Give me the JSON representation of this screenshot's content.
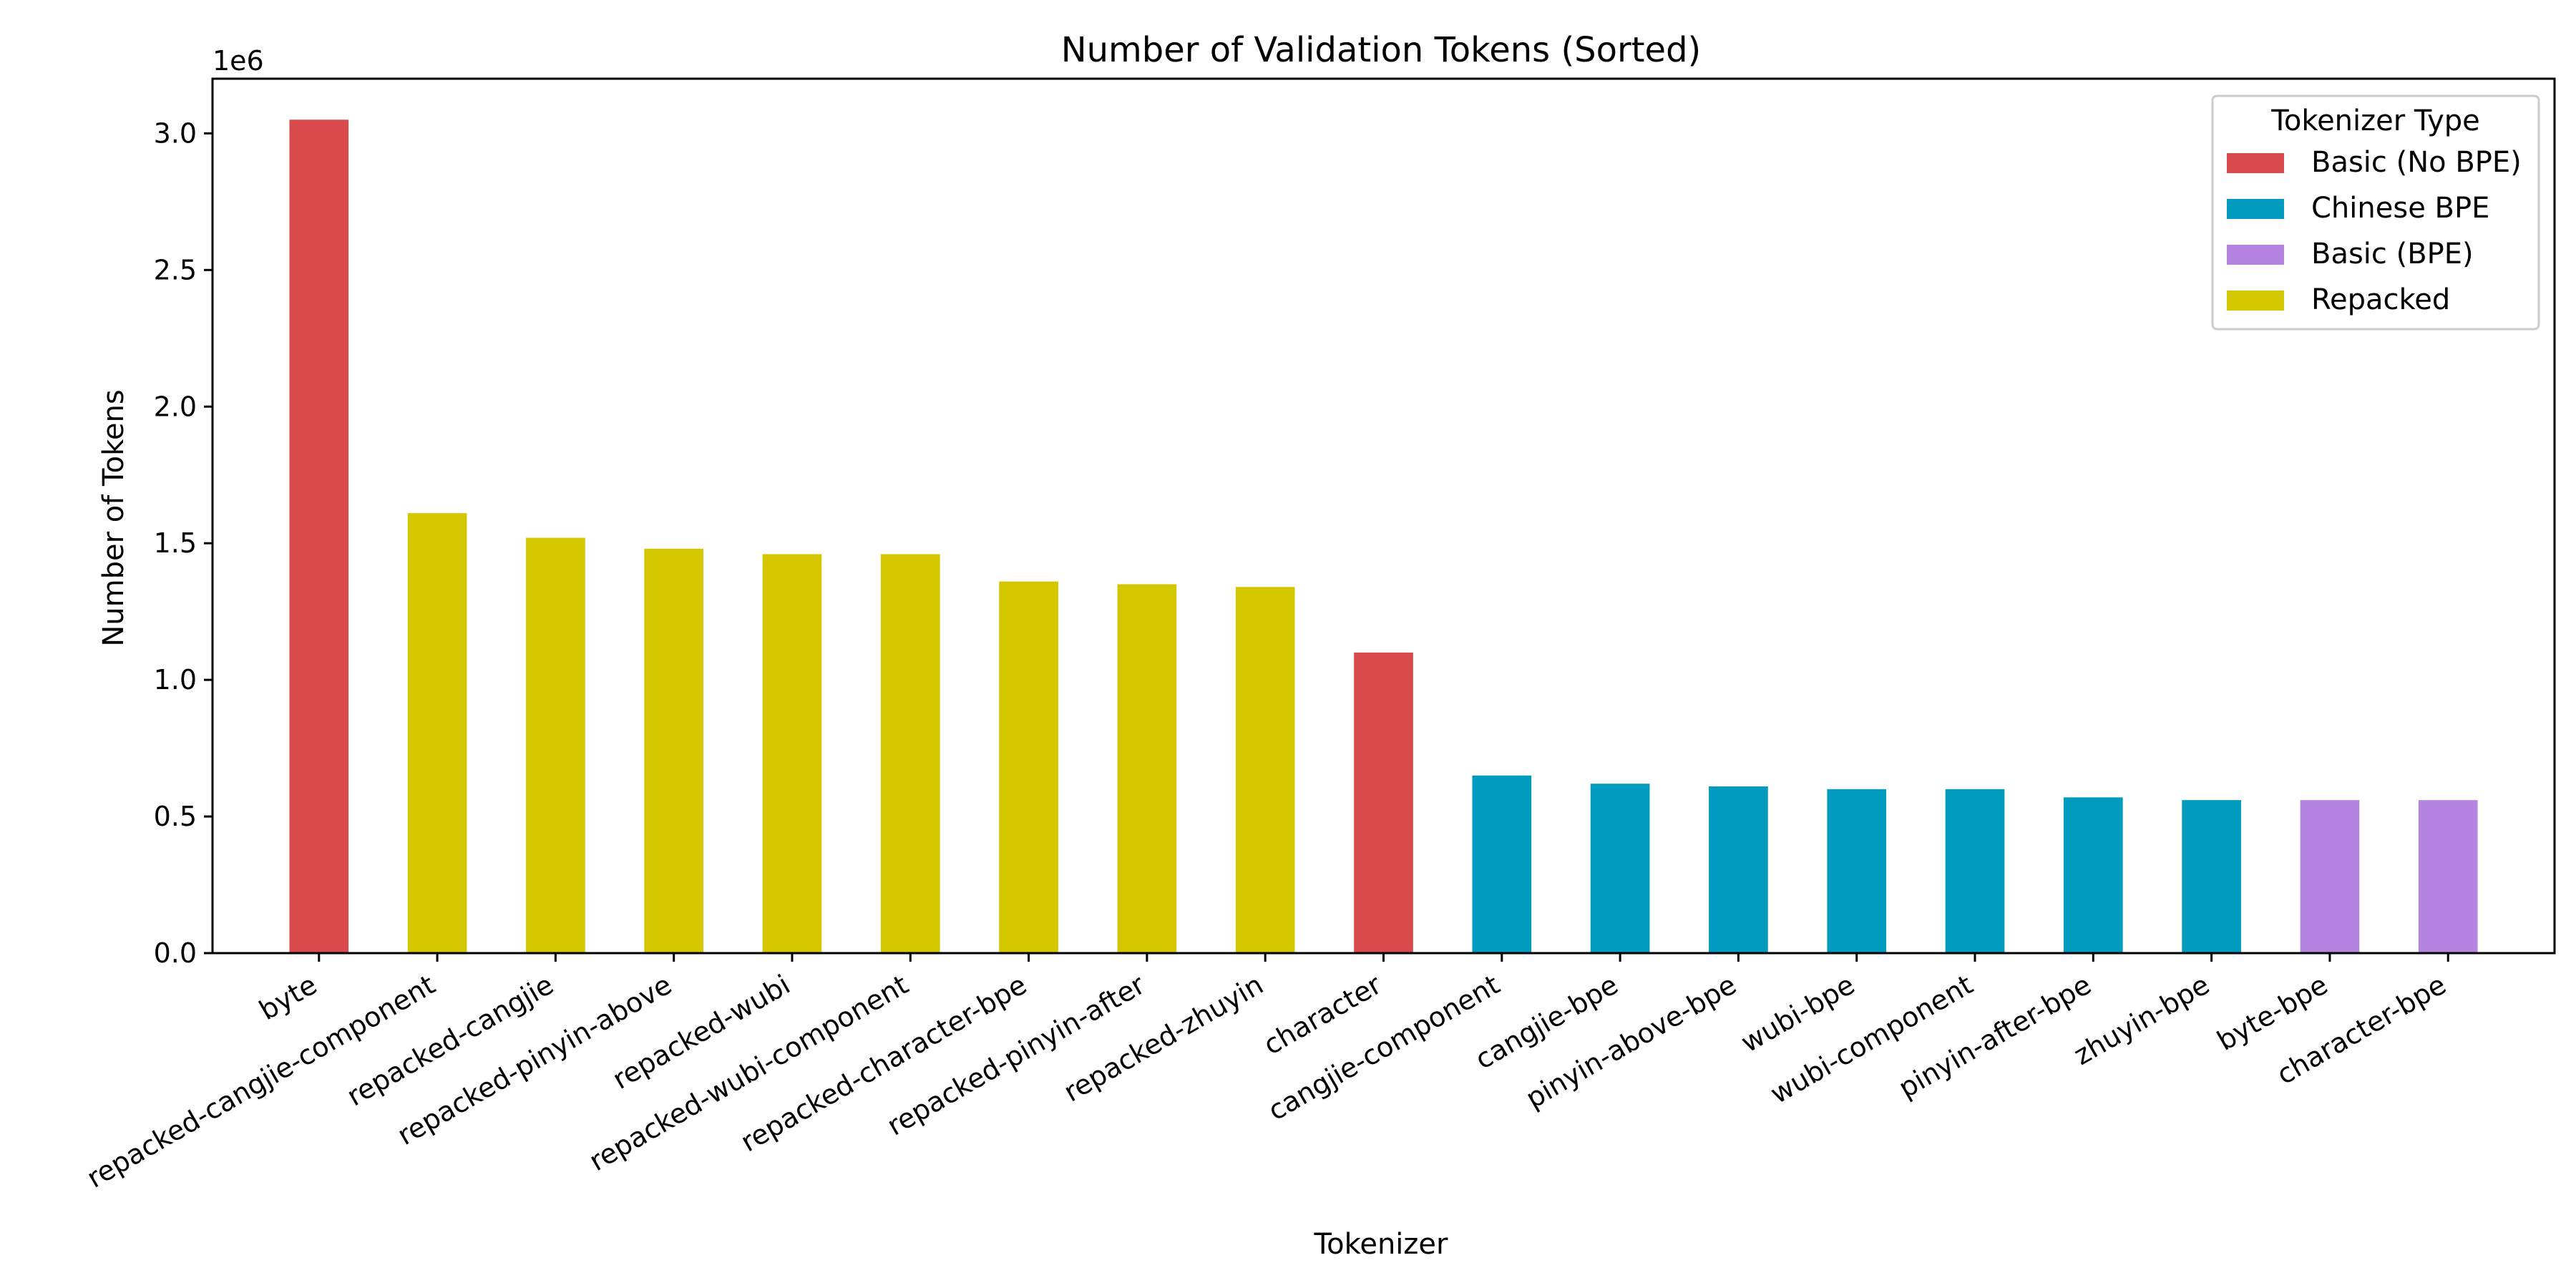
{
  "chart_data": {
    "type": "bar",
    "title": "Number of Validation Tokens (Sorted)",
    "xlabel": "Tokenizer",
    "ylabel": "Number of Tokens",
    "y_multiplier_label": "1e6",
    "ylim": [
      0,
      3.2
    ],
    "yticks": [
      "0.0",
      "0.5",
      "1.0",
      "1.5",
      "2.0",
      "2.5",
      "3.0"
    ],
    "grid": false,
    "legend": {
      "title": "Tokenizer Type",
      "placement": "top-right",
      "entries": [
        {
          "name": "Basic (No BPE)",
          "color": "#d94a4c"
        },
        {
          "name": "Chinese BPE",
          "color": "#009bbf"
        },
        {
          "name": "Basic (BPE)",
          "color": "#b484e0"
        },
        {
          "name": "Repacked",
          "color": "#d4c700"
        }
      ]
    },
    "categories": [
      "byte",
      "repacked-cangjie-component",
      "repacked-cangjie",
      "repacked-pinyin-above",
      "repacked-wubi",
      "repacked-wubi-component",
      "repacked-character-bpe",
      "repacked-pinyin-after",
      "repacked-zhuyin",
      "character",
      "cangjie-component",
      "cangjie-bpe",
      "pinyin-above-bpe",
      "wubi-bpe",
      "wubi-component",
      "pinyin-after-bpe",
      "zhuyin-bpe",
      "byte-bpe",
      "character-bpe"
    ],
    "values": [
      3.05,
      1.61,
      1.52,
      1.48,
      1.46,
      1.46,
      1.36,
      1.35,
      1.34,
      1.1,
      0.65,
      0.62,
      0.61,
      0.6,
      0.6,
      0.57,
      0.56,
      0.56,
      0.56
    ],
    "groups": [
      "Basic (No BPE)",
      "Repacked",
      "Repacked",
      "Repacked",
      "Repacked",
      "Repacked",
      "Repacked",
      "Repacked",
      "Repacked",
      "Basic (No BPE)",
      "Chinese BPE",
      "Chinese BPE",
      "Chinese BPE",
      "Chinese BPE",
      "Chinese BPE",
      "Chinese BPE",
      "Chinese BPE",
      "Basic (BPE)",
      "Basic (BPE)"
    ]
  }
}
